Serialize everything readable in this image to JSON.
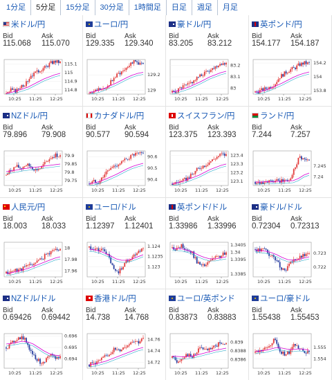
{
  "tabs": [
    "1分足",
    "5分足",
    "15分足",
    "30分足",
    "1時間足",
    "日足",
    "週足",
    "月足"
  ],
  "active_tab": 1,
  "labels": {
    "bid": "Bid",
    "ask": "Ask"
  },
  "colors": {
    "link": "#1a5ab5",
    "up": "#e23a3a",
    "down": "#2a3fa0",
    "ma_short": "#d400d4",
    "ma_long": "#19a4c8"
  },
  "tiles": [
    {
      "pair": "米ドル/円",
      "flag": "us",
      "bid": "115.068",
      "ask": "115.070",
      "chart": {
        "yticks": [
          "115.1",
          "115",
          "114.9",
          "114.8"
        ],
        "ymin": 114.75,
        "ymax": 115.15,
        "xticks": [
          "10:25",
          "11:25",
          "12:25"
        ],
        "trend": [
          0,
          0.12,
          0.08,
          0.25,
          0.3,
          0.55,
          0.6,
          0.72,
          0.78,
          0.9,
          0.95,
          0.92
        ],
        "ma": [
          0.02,
          0.05,
          0.1,
          0.15,
          0.2,
          0.28,
          0.36,
          0.44,
          0.5,
          0.56,
          0.6
        ]
      }
    },
    {
      "pair": "ユーロ/円",
      "flag": "eu",
      "bid": "129.335",
      "ask": "129.340",
      "chart": {
        "yticks": [
          "129.2",
          "129"
        ],
        "ymin": 128.95,
        "ymax": 129.4,
        "xticks": [
          "10:25",
          "11:25",
          "12:25"
        ],
        "trend": [
          0.02,
          0.08,
          0.15,
          0.1,
          0.3,
          0.45,
          0.6,
          0.7,
          0.85,
          0.95,
          0.9,
          0.85
        ],
        "ma": [
          0.05,
          0.08,
          0.12,
          0.18,
          0.25,
          0.32,
          0.4,
          0.48,
          0.55,
          0.6,
          0.63
        ]
      }
    },
    {
      "pair": "豪ドル/円",
      "flag": "au",
      "bid": "83.205",
      "ask": "83.212",
      "chart": {
        "yticks": [
          "83.2",
          "83.1",
          "83"
        ],
        "ymin": 82.95,
        "ymax": 83.25,
        "xticks": [
          "10:25",
          "11:25",
          "12:25"
        ],
        "trend": [
          0.05,
          0.1,
          0.2,
          0.25,
          0.35,
          0.45,
          0.55,
          0.65,
          0.72,
          0.82,
          0.9,
          0.88
        ],
        "ma": [
          0.05,
          0.1,
          0.15,
          0.2,
          0.27,
          0.34,
          0.42,
          0.5,
          0.56,
          0.62,
          0.66
        ]
      }
    },
    {
      "pair": "英ポンド/円",
      "flag": "gb",
      "bid": "154.177",
      "ask": "154.187",
      "chart": {
        "yticks": [
          "154.2",
          "154",
          "153.8"
        ],
        "ymin": 153.75,
        "ymax": 154.25,
        "xticks": [
          "10:25",
          "11:25",
          "12:25"
        ],
        "trend": [
          0.05,
          0.1,
          0.15,
          0.2,
          0.3,
          0.5,
          0.6,
          0.7,
          0.75,
          0.85,
          0.9,
          0.88
        ],
        "ma": [
          0.05,
          0.08,
          0.12,
          0.18,
          0.25,
          0.32,
          0.4,
          0.48,
          0.55,
          0.6,
          0.64
        ]
      }
    },
    {
      "pair": "NZドル/円",
      "flag": "nz",
      "bid": "79.896",
      "ask": "79.908",
      "chart": {
        "yticks": [
          "79.9",
          "79.85",
          "79.8",
          "79.75"
        ],
        "ymin": 79.72,
        "ymax": 79.93,
        "xticks": [
          "10:25",
          "11:25",
          "12:25"
        ],
        "trend": [
          0.3,
          0.45,
          0.55,
          0.5,
          0.6,
          0.55,
          0.45,
          0.5,
          0.65,
          0.8,
          0.88,
          0.85
        ],
        "ma": [
          0.4,
          0.42,
          0.45,
          0.48,
          0.5,
          0.52,
          0.54,
          0.56,
          0.58,
          0.6,
          0.62
        ]
      }
    },
    {
      "pair": "カナダドル/円",
      "flag": "ca",
      "bid": "90.577",
      "ask": "90.594",
      "chart": {
        "yticks": [
          "90.6",
          "90.5",
          "90.4"
        ],
        "ymin": 90.35,
        "ymax": 90.65,
        "xticks": [
          "10:25",
          "11:25",
          "12:25"
        ],
        "trend": [
          0.05,
          0.12,
          0.1,
          0.3,
          0.45,
          0.55,
          0.62,
          0.7,
          0.8,
          0.88,
          0.9,
          0.92
        ],
        "ma": [
          0.05,
          0.08,
          0.12,
          0.18,
          0.25,
          0.32,
          0.4,
          0.48,
          0.55,
          0.6,
          0.64
        ]
      }
    },
    {
      "pair": "スイスフラン/円",
      "flag": "ch",
      "bid": "123.375",
      "ask": "123.393",
      "chart": {
        "yticks": [
          "123.4",
          "123.3",
          "123.2",
          "123.1"
        ],
        "ymin": 123.05,
        "ymax": 123.45,
        "xticks": [
          "10:25",
          "11:25",
          "12:25"
        ],
        "trend": [
          0.05,
          0.1,
          0.12,
          0.2,
          0.3,
          0.45,
          0.55,
          0.62,
          0.72,
          0.82,
          0.9,
          0.88
        ],
        "ma": [
          0.05,
          0.08,
          0.12,
          0.18,
          0.24,
          0.3,
          0.38,
          0.46,
          0.52,
          0.58,
          0.62
        ]
      }
    },
    {
      "pair": "ランド/円",
      "flag": "za",
      "bid": "7.244",
      "ask": "7.257",
      "chart": {
        "yticks": [
          "7.245",
          "7.24"
        ],
        "ymin": 7.236,
        "ymax": 7.252,
        "xticks": [
          "10:25",
          "11:25",
          "12:25"
        ],
        "trend": [
          0.1,
          0.1,
          0.12,
          0.1,
          0.12,
          0.12,
          0.14,
          0.15,
          0.5,
          0.85,
          0.75,
          0.7
        ],
        "ma": [
          0.1,
          0.1,
          0.11,
          0.11,
          0.12,
          0.12,
          0.13,
          0.14,
          0.2,
          0.3,
          0.36
        ]
      }
    },
    {
      "pair": "人民元/円",
      "flag": "cn",
      "bid": "18.003",
      "ask": "18.033",
      "chart": {
        "yticks": [
          "18",
          "17.98",
          "17.96"
        ],
        "ymin": 17.95,
        "ymax": 18.01,
        "xticks": [
          "10:25",
          "11:25",
          "12:25"
        ],
        "trend": [
          0.1,
          0.15,
          0.2,
          0.22,
          0.3,
          0.35,
          0.42,
          0.5,
          0.62,
          0.72,
          0.8,
          0.78
        ],
        "ma": [
          0.1,
          0.12,
          0.16,
          0.2,
          0.24,
          0.3,
          0.36,
          0.42,
          0.48,
          0.54,
          0.58
        ]
      }
    },
    {
      "pair": "ユーロ/ドル",
      "flag": "eu",
      "bid": "1.12397",
      "ask": "1.12401",
      "chart": {
        "yticks": [
          "1.124",
          "1.1235",
          "1.123"
        ],
        "ymin": 1.1225,
        "ymax": 1.1242,
        "xticks": [
          "10:25",
          "11:25",
          "12:25"
        ],
        "trend": [
          0.85,
          0.82,
          0.75,
          0.8,
          0.55,
          0.2,
          0.15,
          0.35,
          0.5,
          0.6,
          0.75,
          0.8
        ],
        "ma": [
          0.8,
          0.78,
          0.74,
          0.68,
          0.6,
          0.52,
          0.48,
          0.48,
          0.52,
          0.58,
          0.64
        ]
      }
    },
    {
      "pair": "英ポンド/ドル",
      "flag": "gb",
      "bid": "1.33986",
      "ask": "1.33996",
      "chart": {
        "yticks": [
          "1.3405",
          "1.34",
          "1.3395",
          "1.3385"
        ],
        "ymin": 1.3383,
        "ymax": 1.3407,
        "xticks": [
          "10:25",
          "11:25",
          "12:25"
        ],
        "trend": [
          0.85,
          0.8,
          0.9,
          0.78,
          0.7,
          0.45,
          0.3,
          0.35,
          0.5,
          0.55,
          0.62,
          0.68
        ],
        "ma": [
          0.82,
          0.82,
          0.8,
          0.76,
          0.7,
          0.62,
          0.56,
          0.52,
          0.52,
          0.55,
          0.58
        ]
      }
    },
    {
      "pair": "豪ドル/ドル",
      "flag": "au",
      "bid": "0.72304",
      "ask": "0.72313",
      "chart": {
        "yticks": [
          "0.723",
          "0.722"
        ],
        "ymin": 0.7213,
        "ymax": 0.7238,
        "xticks": [
          "10:25",
          "11:25",
          "12:25"
        ],
        "trend": [
          0.8,
          0.75,
          0.82,
          0.6,
          0.55,
          0.3,
          0.2,
          0.35,
          0.5,
          0.55,
          0.62,
          0.65
        ],
        "ma": [
          0.78,
          0.76,
          0.74,
          0.7,
          0.64,
          0.56,
          0.5,
          0.48,
          0.5,
          0.54,
          0.58
        ]
      }
    },
    {
      "pair": "NZドル/ドル",
      "flag": "nz",
      "bid": "0.69426",
      "ask": "0.69442",
      "chart": {
        "yticks": [
          "0.696",
          "0.695",
          "0.694"
        ],
        "ymin": 0.6932,
        "ymax": 0.6962,
        "xticks": [
          "10:25",
          "11:25",
          "12:25"
        ],
        "trend": [
          0.6,
          0.7,
          0.85,
          0.9,
          0.8,
          0.5,
          0.3,
          0.15,
          0.25,
          0.35,
          0.3,
          0.32
        ],
        "ma": [
          0.7,
          0.72,
          0.75,
          0.78,
          0.76,
          0.7,
          0.6,
          0.5,
          0.42,
          0.38,
          0.36
        ]
      }
    },
    {
      "pair": "香港ドル/円",
      "flag": "hk",
      "bid": "14.738",
      "ask": "14.768",
      "chart": {
        "yticks": [
          "14.76",
          "14.74",
          "14.72"
        ],
        "ymin": 14.71,
        "ymax": 14.77,
        "xticks": [
          "10:25",
          "11:25",
          "12:25"
        ],
        "trend": [
          0.1,
          0.15,
          0.2,
          0.3,
          0.4,
          0.55,
          0.5,
          0.6,
          0.7,
          0.82,
          0.75,
          0.85
        ],
        "ma": [
          0.1,
          0.12,
          0.16,
          0.2,
          0.26,
          0.32,
          0.38,
          0.44,
          0.5,
          0.56,
          0.6
        ]
      }
    },
    {
      "pair": "ユーロ/英ポンド",
      "flag": "eu",
      "bid": "0.83873",
      "ask": "0.83883",
      "chart": {
        "yticks": [
          "0.839",
          "0.8388",
          "0.8386"
        ],
        "ymin": 0.8384,
        "ymax": 0.8392,
        "xticks": [
          "10:25",
          "11:25",
          "12:25"
        ],
        "trend": [
          0.3,
          0.2,
          0.3,
          0.4,
          0.3,
          0.5,
          0.6,
          0.5,
          0.55,
          0.65,
          0.75,
          0.7
        ],
        "ma": [
          0.35,
          0.34,
          0.33,
          0.34,
          0.36,
          0.4,
          0.44,
          0.48,
          0.52,
          0.55,
          0.58
        ]
      }
    },
    {
      "pair": "ユーロ/豪ドル",
      "flag": "eu",
      "bid": "1.55438",
      "ask": "1.55453",
      "chart": {
        "yticks": [
          "1.555",
          "1.554"
        ],
        "ymin": 1.5532,
        "ymax": 1.5562,
        "xticks": [
          "10:25",
          "11:25",
          "12:25"
        ],
        "trend": [
          0.45,
          0.5,
          0.55,
          0.65,
          0.85,
          0.5,
          0.4,
          0.45,
          0.7,
          0.6,
          0.5,
          0.45
        ],
        "ma": [
          0.48,
          0.5,
          0.52,
          0.56,
          0.6,
          0.58,
          0.55,
          0.54,
          0.56,
          0.55,
          0.52
        ]
      }
    }
  ]
}
